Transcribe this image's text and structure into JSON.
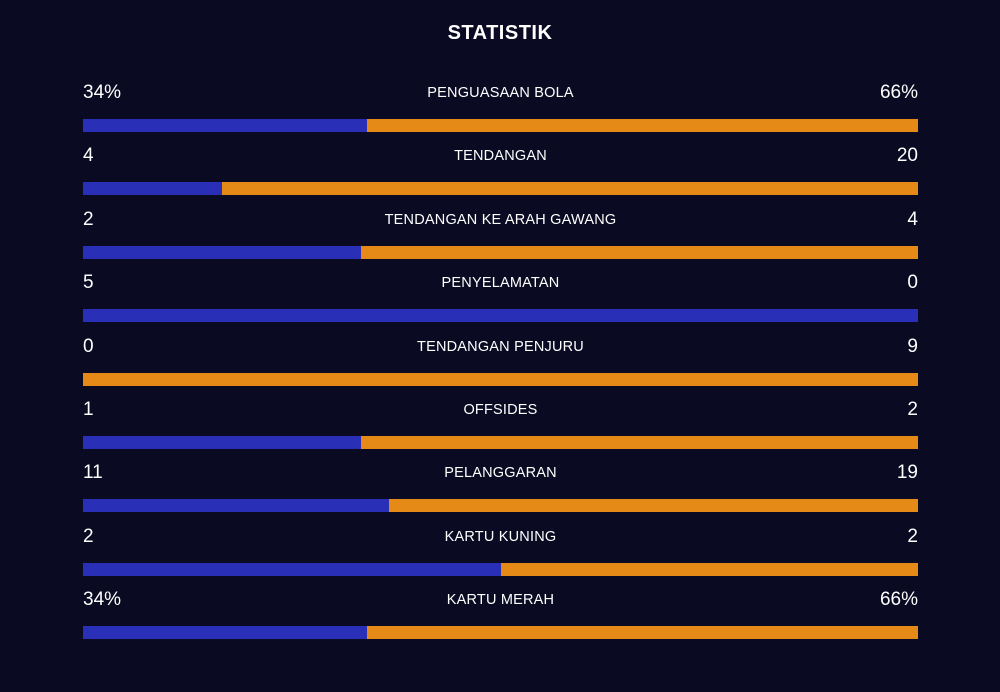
{
  "header": {
    "title": "STATISTIK"
  },
  "colors": {
    "background": "#0a0a22",
    "home": "#2a2fb8",
    "away": "#e58a17"
  },
  "stats": [
    {
      "label": "PENGUASAAN BOLA",
      "left": "34%",
      "right": "66%",
      "home_share": 0.34
    },
    {
      "label": "TENDANGAN",
      "left": "4",
      "right": "20",
      "home_share": 0.1667
    },
    {
      "label": "TENDANGAN KE ARAH GAWANG",
      "left": "2",
      "right": "4",
      "home_share": 0.3333
    },
    {
      "label": "PENYELAMATAN",
      "left": "5",
      "right": "0",
      "home_share": 1.0
    },
    {
      "label": "TENDANGAN PENJURU",
      "left": "0",
      "right": "9",
      "home_share": 0.0
    },
    {
      "label": "OFFSIDES",
      "left": "1",
      "right": "2",
      "home_share": 0.3333
    },
    {
      "label": "PELANGGARAN",
      "left": "11",
      "right": "19",
      "home_share": 0.3667
    },
    {
      "label": "KARTU KUNING",
      "left": "2",
      "right": "2",
      "home_share": 0.5
    },
    {
      "label": "KARTU MERAH",
      "left": "34%",
      "right": "66%",
      "home_share": 0.34
    }
  ]
}
